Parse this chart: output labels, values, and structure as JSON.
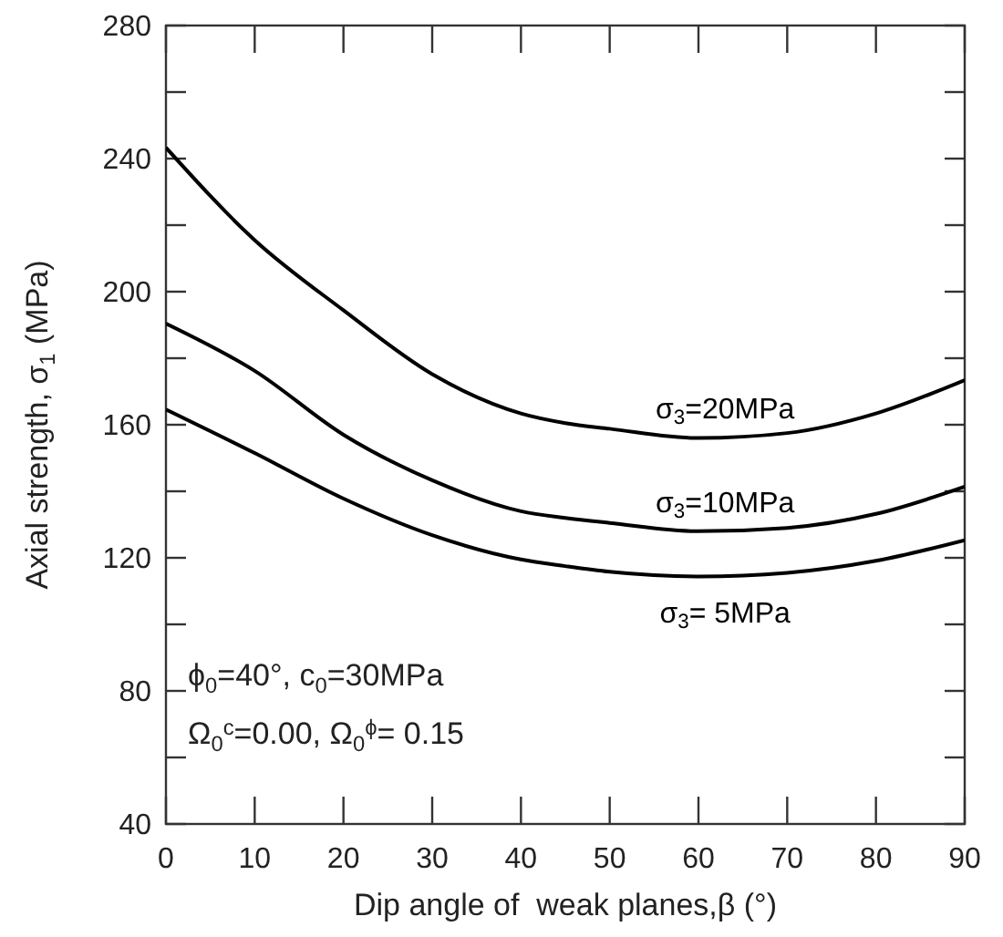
{
  "chart_data": {
    "type": "line",
    "xlabel": "Dip angle of  weak planes,β (°)",
    "ylabel": "Axial strength, σ$_{1}$ (MPa)",
    "x": [
      0,
      10,
      20,
      30,
      40,
      45,
      50,
      60,
      70,
      80,
      90
    ],
    "series": [
      {
        "name": "σ$_{3}$=20MPa",
        "color": "#000000",
        "values": [
          243.3,
          215.5,
          194.4,
          175.2,
          163.4,
          160.5,
          158.8,
          156,
          157.5,
          163.4,
          173.4
        ]
      },
      {
        "name": "σ$_{3}$=10MPa",
        "color": "#000000",
        "values": [
          190.4,
          176.2,
          157,
          143.3,
          134,
          132,
          130.5,
          128,
          129,
          133.2,
          141.4
        ]
      },
      {
        "name": "σ$_{3}$= 5MPa",
        "color": "#000000",
        "values": [
          164.6,
          151.5,
          137.8,
          126.8,
          119.5,
          117.5,
          115.8,
          114.4,
          115.5,
          119.1,
          125.3
        ]
      }
    ],
    "xlim": [
      0,
      90
    ],
    "xticks": [
      0,
      10,
      20,
      30,
      40,
      50,
      60,
      70,
      80,
      90
    ],
    "ylim": [
      40,
      280
    ],
    "yticks": [
      40,
      {
        "value": 60,
        "label": null
      },
      80,
      {
        "value": 100,
        "label": null
      },
      120,
      {
        "value": 140,
        "label": null
      },
      160,
      {
        "value": 180,
        "label": null
      },
      200,
      {
        "value": 220,
        "label": null
      },
      240,
      {
        "value": 260,
        "label": null
      },
      280
    ],
    "annotations": [
      "ϕ$_{0}$=40°, c$_{0}$=30MPa",
      "Ω$_{0}$$^{c}$=0.00, Ω$_{0}$$^{ϕ}$= 0.15"
    ],
    "grid": false,
    "marker": "none",
    "line_style": "solid"
  }
}
